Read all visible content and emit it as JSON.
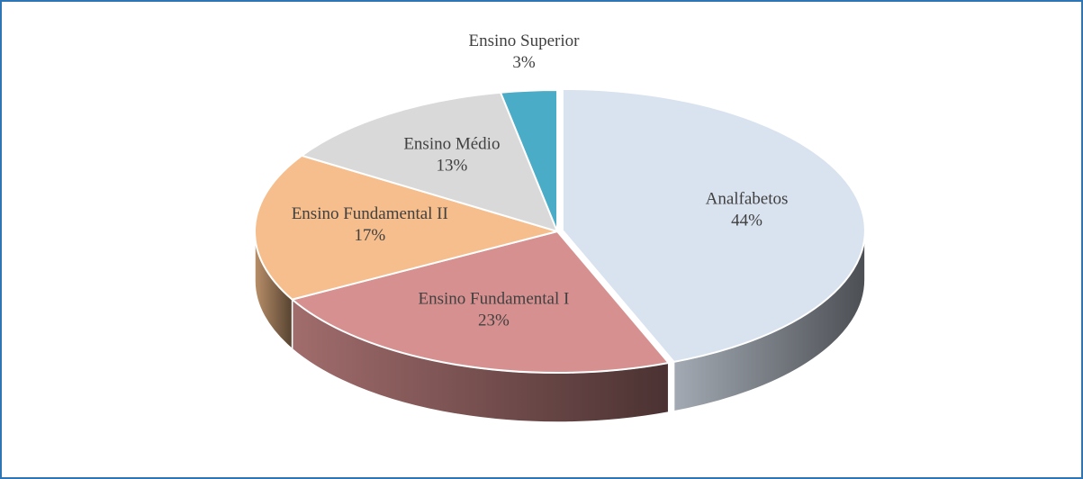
{
  "chart_data": {
    "type": "pie3d",
    "categories": [
      "Analfabetos",
      "Ensino Fundamental I",
      "Ensino Fundamental II",
      "Ensino Médio",
      "Ensino Superior"
    ],
    "values": [
      44,
      23,
      17,
      13,
      3
    ],
    "value_labels": [
      "44%",
      "23%",
      "17%",
      "13%",
      "3%"
    ],
    "colors": [
      "#d9e2ef",
      "#d79090",
      "#f6be8c",
      "#d9d9d9",
      "#4aacc6"
    ]
  }
}
